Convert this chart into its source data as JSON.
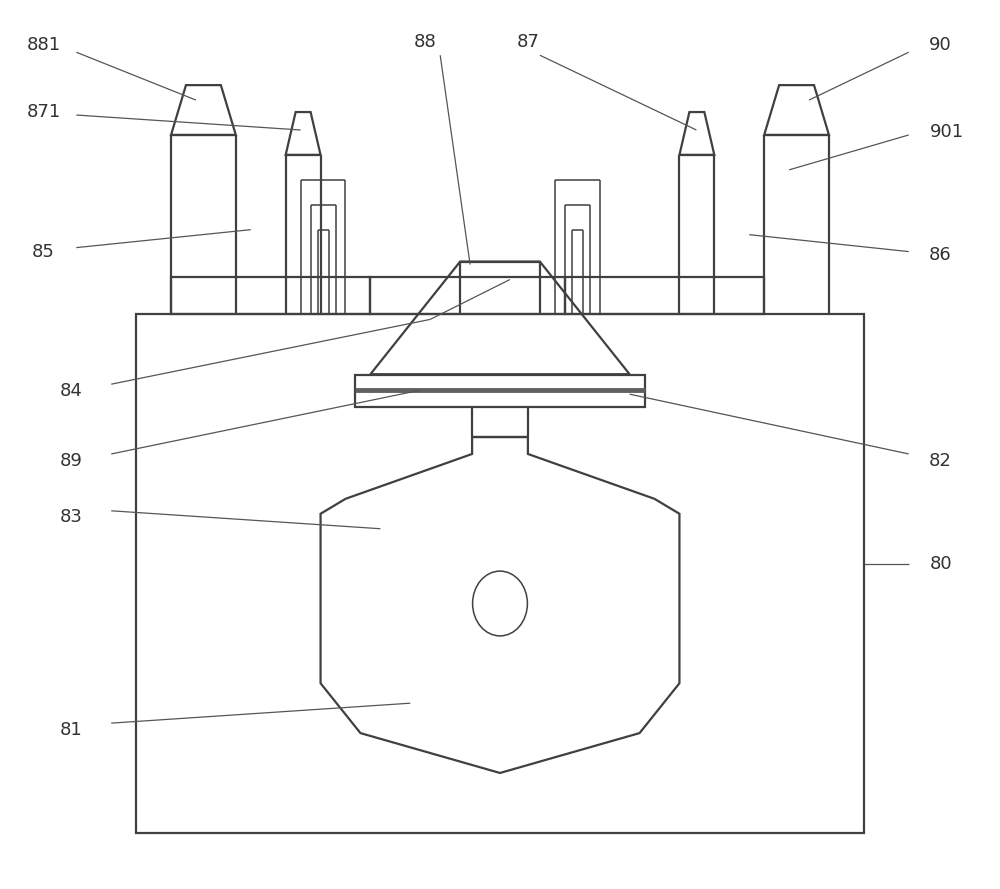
{
  "bg_color": "#ffffff",
  "line_color": "#404040",
  "lw_main": 1.6,
  "lw_thin": 1.1,
  "lw_dark": 3.5,
  "fig_width": 10.0,
  "fig_height": 8.89,
  "label_fontsize": 13,
  "label_color": "#333333",
  "ann_color": "#555555",
  "ann_lw": 0.9
}
